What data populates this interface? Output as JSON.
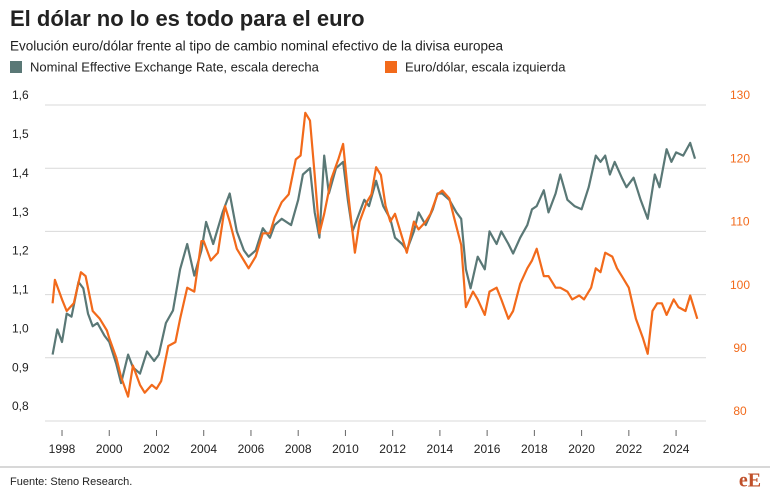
{
  "chart_data": {
    "type": "line",
    "title": "El dólar no lo es todo para el euro",
    "subtitle": "Evolución euro/dólar frente al tipo de cambio nominal efectivo de la divisa europea",
    "source": "Fuente: Steno Research.",
    "logo": "eE",
    "xlim": [
      1997,
      2025.5
    ],
    "xticks": [
      1998,
      2000,
      2002,
      2004,
      2006,
      2008,
      2010,
      2012,
      2014,
      2016,
      2018,
      2020,
      2022,
      2024
    ],
    "ylim": [
      0.8,
      1.6
    ],
    "yticks": [
      {
        "value": 0.8,
        "label": "0,8"
      },
      {
        "value": 0.9,
        "label": "0,9"
      },
      {
        "value": 1.0,
        "label": "1,0"
      },
      {
        "value": 1.1,
        "label": "1,1"
      },
      {
        "value": 1.2,
        "label": "1,2"
      },
      {
        "value": 1.3,
        "label": "1,3"
      },
      {
        "value": 1.4,
        "label": "1,4"
      },
      {
        "value": 1.5,
        "label": "1,5"
      },
      {
        "value": 1.6,
        "label": "1,6"
      }
    ],
    "y2lim": [
      80,
      130
    ],
    "y2ticks": [
      80,
      90,
      100,
      110,
      120,
      130
    ],
    "grid": true,
    "series": [
      {
        "name": "Nominal Effective Exchange Rate, escala derecha",
        "color": "#5a7876",
        "axis": "y2",
        "x": [
          1997.6,
          1997.8,
          1998.0,
          1998.2,
          1998.4,
          1998.7,
          1998.9,
          1999.1,
          1999.3,
          1999.5,
          1999.8,
          2000.0,
          2000.3,
          2000.5,
          2000.8,
          2001.0,
          2001.3,
          2001.6,
          2001.9,
          2002.1,
          2002.4,
          2002.7,
          2003.0,
          2003.3,
          2003.6,
          2003.9,
          2004.1,
          2004.4,
          2004.8,
          2005.1,
          2005.4,
          2005.7,
          2005.9,
          2006.2,
          2006.5,
          2006.8,
          2007.0,
          2007.3,
          2007.7,
          2008.0,
          2008.2,
          2008.5,
          2008.7,
          2008.9,
          2009.1,
          2009.3,
          2009.6,
          2009.9,
          2010.1,
          2010.3,
          2010.5,
          2010.8,
          2011.0,
          2011.3,
          2011.6,
          2011.9,
          2012.1,
          2012.4,
          2012.6,
          2012.9,
          2013.1,
          2013.4,
          2013.7,
          2013.9,
          2014.1,
          2014.4,
          2014.7,
          2014.9,
          2015.1,
          2015.3,
          2015.6,
          2015.9,
          2016.1,
          2016.4,
          2016.6,
          2016.9,
          2017.1,
          2017.4,
          2017.7,
          2017.9,
          2018.1,
          2018.4,
          2018.6,
          2018.9,
          2019.1,
          2019.4,
          2019.7,
          2020.0,
          2020.3,
          2020.6,
          2020.8,
          2021.0,
          2021.2,
          2021.4,
          2021.7,
          2021.9,
          2022.2,
          2022.5,
          2022.8,
          2023.1,
          2023.3,
          2023.6,
          2023.8,
          2024.0,
          2024.3,
          2024.6,
          2024.8
        ],
        "values": [
          90.5,
          94.5,
          92.5,
          97,
          96.5,
          102,
          101,
          97,
          95,
          95.5,
          93.5,
          92.5,
          89,
          86,
          90.5,
          88.5,
          87.5,
          91,
          89.5,
          90.5,
          95.5,
          97.5,
          104,
          108,
          103,
          107,
          111.5,
          108,
          113,
          116,
          110,
          107,
          106,
          107,
          110.5,
          109,
          111,
          112,
          111,
          115,
          119,
          120,
          113,
          109,
          122,
          116,
          120,
          121,
          115,
          110,
          112,
          115,
          114,
          118,
          114,
          112,
          109,
          108,
          107,
          110,
          113,
          111,
          113.5,
          116,
          116,
          115,
          113,
          112,
          104,
          101,
          106,
          104,
          110,
          108,
          110,
          108,
          106.5,
          109,
          111,
          113.5,
          114,
          116.5,
          113,
          116,
          119,
          115,
          114,
          113.5,
          117,
          122,
          121,
          122,
          119,
          121,
          118.5,
          117,
          118.5,
          115,
          112,
          119,
          117,
          123,
          121,
          122.5,
          122,
          124,
          121.5
        ]
      },
      {
        "name": "Euro/dólar, escala izquierda",
        "color": "#f26a1b",
        "x": [
          1997.6,
          1997.7,
          1998.0,
          1998.2,
          1998.5,
          1998.8,
          1999.0,
          1999.3,
          1999.6,
          1999.9,
          2000.0,
          2000.3,
          2000.5,
          2000.8,
          2001.0,
          2001.3,
          2001.5,
          2001.8,
          2002.0,
          2002.2,
          2002.5,
          2002.8,
          2003.0,
          2003.3,
          2003.6,
          2003.9,
          2004.0,
          2004.3,
          2004.6,
          2004.9,
          2005.1,
          2005.4,
          2005.7,
          2005.9,
          2006.2,
          2006.5,
          2006.8,
          2007.0,
          2007.3,
          2007.6,
          2007.9,
          2008.1,
          2008.3,
          2008.5,
          2008.7,
          2008.9,
          2009.1,
          2009.4,
          2009.7,
          2009.9,
          2010.1,
          2010.4,
          2010.6,
          2010.9,
          2011.1,
          2011.3,
          2011.5,
          2011.7,
          2011.9,
          2012.1,
          2012.4,
          2012.6,
          2012.9,
          2013.1,
          2013.4,
          2013.6,
          2013.9,
          2014.1,
          2014.4,
          2014.6,
          2014.9,
          2015.1,
          2015.4,
          2015.6,
          2015.9,
          2016.1,
          2016.4,
          2016.6,
          2016.9,
          2017.1,
          2017.4,
          2017.7,
          2017.9,
          2018.1,
          2018.4,
          2018.6,
          2018.9,
          2019.1,
          2019.4,
          2019.6,
          2019.9,
          2020.1,
          2020.4,
          2020.6,
          2020.8,
          2021.0,
          2021.3,
          2021.5,
          2021.7,
          2022.0,
          2022.3,
          2022.6,
          2022.8,
          2023.0,
          2023.2,
          2023.4,
          2023.6,
          2023.9,
          2024.1,
          2024.4,
          2024.6,
          2024.9
        ],
        "values": [
          1.09,
          1.15,
          1.1,
          1.07,
          1.09,
          1.17,
          1.16,
          1.07,
          1.05,
          1.02,
          1.0,
          0.95,
          0.9,
          0.85,
          0.93,
          0.88,
          0.86,
          0.88,
          0.87,
          0.89,
          0.98,
          0.99,
          1.05,
          1.13,
          1.12,
          1.25,
          1.25,
          1.2,
          1.22,
          1.34,
          1.3,
          1.23,
          1.2,
          1.18,
          1.21,
          1.27,
          1.27,
          1.31,
          1.35,
          1.37,
          1.46,
          1.47,
          1.58,
          1.56,
          1.42,
          1.27,
          1.32,
          1.41,
          1.46,
          1.5,
          1.38,
          1.22,
          1.3,
          1.35,
          1.37,
          1.44,
          1.42,
          1.34,
          1.3,
          1.32,
          1.26,
          1.22,
          1.3,
          1.28,
          1.3,
          1.32,
          1.37,
          1.38,
          1.36,
          1.31,
          1.24,
          1.08,
          1.12,
          1.1,
          1.06,
          1.12,
          1.13,
          1.1,
          1.05,
          1.07,
          1.14,
          1.18,
          1.2,
          1.23,
          1.16,
          1.16,
          1.13,
          1.13,
          1.12,
          1.1,
          1.11,
          1.1,
          1.13,
          1.18,
          1.17,
          1.22,
          1.21,
          1.18,
          1.16,
          1.13,
          1.05,
          1.0,
          0.96,
          1.07,
          1.09,
          1.09,
          1.06,
          1.1,
          1.08,
          1.07,
          1.11,
          1.05
        ]
      }
    ]
  }
}
